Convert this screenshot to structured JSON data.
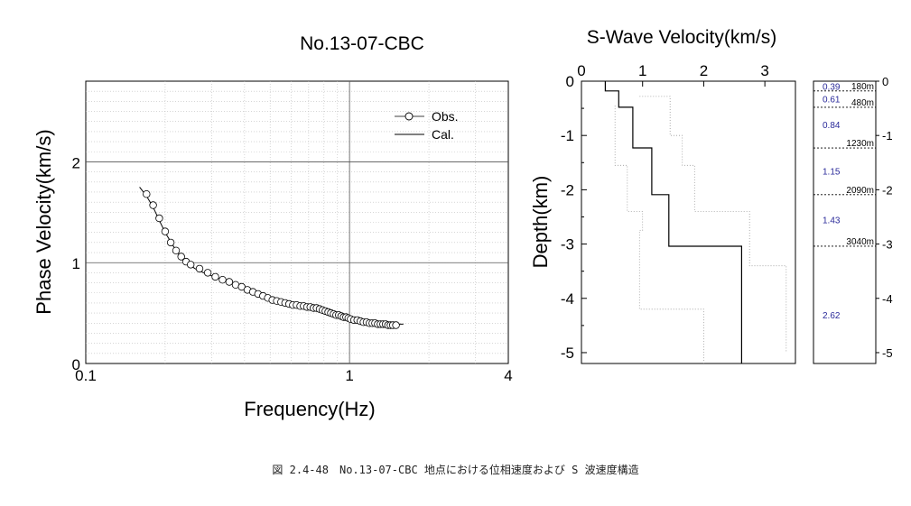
{
  "chart_data": [
    {
      "type": "scatter",
      "title": "No.13-07-CBC",
      "xlabel": "Frequency(Hz)",
      "ylabel": "Phase Velocity(km/s)",
      "xscale": "log",
      "xlim": [
        0.1,
        4
      ],
      "ylim": [
        0,
        2.8
      ],
      "xticks": [
        0.1,
        1,
        4
      ],
      "xtick_labels": [
        "0.1",
        "1",
        "4"
      ],
      "yticks": [
        0,
        1,
        2
      ],
      "ytick_labels": [
        "0",
        "1",
        "2"
      ],
      "grid": true,
      "legend": "top-right",
      "series": [
        {
          "name": "Obs.",
          "style": "open-circle",
          "x": [
            0.17,
            0.18,
            0.19,
            0.2,
            0.21,
            0.22,
            0.23,
            0.24,
            0.25,
            0.27,
            0.29,
            0.31,
            0.33,
            0.35,
            0.37,
            0.39,
            0.41,
            0.43,
            0.45,
            0.47,
            0.49,
            0.51,
            0.53,
            0.55,
            0.57,
            0.59,
            0.61,
            0.63,
            0.65,
            0.67,
            0.69,
            0.71,
            0.73,
            0.75,
            0.77,
            0.79,
            0.81,
            0.83,
            0.85,
            0.87,
            0.89,
            0.91,
            0.93,
            0.95,
            0.97,
            0.99,
            1.01,
            1.04,
            1.07,
            1.1,
            1.13,
            1.16,
            1.19,
            1.22,
            1.25,
            1.28,
            1.31,
            1.34,
            1.37,
            1.4,
            1.43,
            1.46,
            1.5
          ],
          "y": [
            1.68,
            1.57,
            1.44,
            1.31,
            1.2,
            1.12,
            1.06,
            1.01,
            0.98,
            0.94,
            0.9,
            0.86,
            0.83,
            0.81,
            0.78,
            0.76,
            0.73,
            0.71,
            0.69,
            0.67,
            0.65,
            0.63,
            0.62,
            0.61,
            0.6,
            0.59,
            0.58,
            0.58,
            0.57,
            0.57,
            0.56,
            0.56,
            0.55,
            0.55,
            0.54,
            0.53,
            0.52,
            0.51,
            0.5,
            0.49,
            0.48,
            0.48,
            0.47,
            0.46,
            0.46,
            0.45,
            0.44,
            0.43,
            0.43,
            0.42,
            0.41,
            0.41,
            0.4,
            0.4,
            0.4,
            0.39,
            0.39,
            0.39,
            0.39,
            0.38,
            0.38,
            0.38,
            0.38
          ]
        },
        {
          "name": "Cal.",
          "style": "line",
          "x": [
            0.16,
            0.17,
            0.18,
            0.19,
            0.2,
            0.22,
            0.24,
            0.26,
            0.28,
            0.3,
            0.33,
            0.36,
            0.4,
            0.44,
            0.48,
            0.52,
            0.56,
            0.6,
            0.65,
            0.7,
            0.75,
            0.8,
            0.85,
            0.9,
            0.95,
            1.0,
            1.1,
            1.2,
            1.3,
            1.4,
            1.5,
            1.6
          ],
          "y": [
            1.75,
            1.66,
            1.55,
            1.42,
            1.3,
            1.12,
            1.0,
            0.94,
            0.9,
            0.87,
            0.83,
            0.79,
            0.74,
            0.7,
            0.66,
            0.63,
            0.61,
            0.59,
            0.58,
            0.57,
            0.56,
            0.54,
            0.51,
            0.49,
            0.47,
            0.45,
            0.42,
            0.41,
            0.4,
            0.39,
            0.39,
            0.39
          ]
        }
      ]
    },
    {
      "type": "line",
      "title": "S-Wave Velocity(km/s)",
      "xlabel": "",
      "ylabel": "Depth(km)",
      "xlim": [
        0,
        3.5
      ],
      "ylim": [
        -5.2,
        0
      ],
      "xticks": [
        0,
        1,
        2,
        3
      ],
      "xtick_labels": [
        "0",
        "1",
        "2",
        "3"
      ],
      "yticks": [
        0,
        -1,
        -2,
        -3,
        -4,
        -5
      ],
      "ytick_labels": [
        "0",
        "-1",
        "-2",
        "-3",
        "-4",
        "-5"
      ],
      "series": [
        {
          "role": "profile",
          "style": "solid",
          "x": [
            0.39,
            0.39,
            0.61,
            0.61,
            0.84,
            0.84,
            1.15,
            1.15,
            1.43,
            1.43,
            2.62,
            2.62
          ],
          "y": [
            0,
            -0.18,
            -0.18,
            -0.48,
            -0.48,
            -1.23,
            -1.23,
            -2.09,
            -2.09,
            -3.04,
            -3.04,
            -5.2
          ]
        },
        {
          "role": "upper-bound",
          "style": "dotted",
          "x": [
            0.95,
            0.95,
            1.45,
            1.45,
            1.65,
            1.65,
            1.85,
            1.85,
            2.75,
            2.75,
            3.35,
            3.35
          ],
          "y": [
            -0.28,
            -0.28,
            -0.28,
            -1.0,
            -1.0,
            -1.55,
            -1.55,
            -2.4,
            -2.4,
            -3.4,
            -3.4,
            -5.0
          ]
        },
        {
          "role": "lower-bound",
          "style": "dotted",
          "x": [
            0.55,
            0.55,
            0.75,
            0.75,
            1.0,
            1.0,
            0.95,
            0.95,
            2.0,
            2.0
          ],
          "y": [
            -0.45,
            -1.55,
            -1.55,
            -2.4,
            -2.4,
            -2.75,
            -2.75,
            -4.2,
            -4.2,
            -5.2
          ]
        }
      ]
    }
  ],
  "layer_column": {
    "velocities": [
      {
        "label": "0.39",
        "depth": -0.09
      },
      {
        "label": "0.61",
        "depth": -0.32
      },
      {
        "label": "0.84",
        "depth": -0.8
      },
      {
        "label": "1.15",
        "depth": -1.65
      },
      {
        "label": "1.43",
        "depth": -2.55
      },
      {
        "label": "2.62",
        "depth": -4.3
      }
    ],
    "boundaries": [
      {
        "label": "180m",
        "depth": -0.18
      },
      {
        "label": "480m",
        "depth": -0.48
      },
      {
        "label": "1230m",
        "depth": -1.23
      },
      {
        "label": "2090m",
        "depth": -2.09
      },
      {
        "label": "3040m",
        "depth": -3.04
      }
    ],
    "ticks": [
      "0",
      "-1",
      "-2",
      "-3",
      "-4",
      "-5"
    ]
  },
  "caption": "図 2.4-48　No.13-07-CBC 地点における位相速度および S 波速度構造"
}
